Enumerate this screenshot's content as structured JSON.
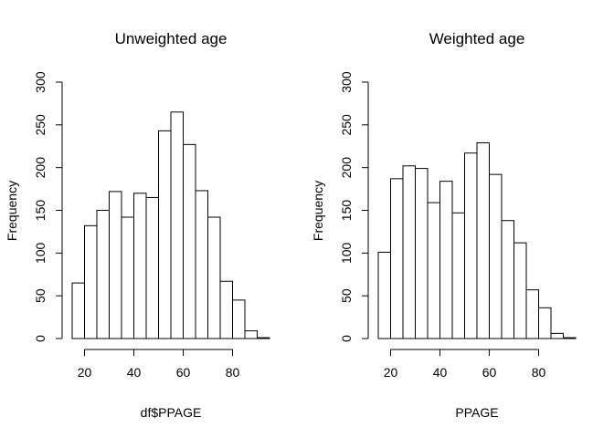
{
  "chart_data": [
    {
      "type": "bar",
      "title": "Unweighted age",
      "xlabel": "df$PPAGE",
      "ylabel": "Frequency",
      "bin_edges": [
        15,
        20,
        25,
        30,
        35,
        40,
        45,
        50,
        55,
        60,
        65,
        70,
        75,
        80,
        85,
        90,
        95
      ],
      "values": [
        65,
        132,
        150,
        172,
        142,
        170,
        165,
        243,
        265,
        227,
        173,
        142,
        67,
        45,
        9,
        1
      ],
      "xticks": [
        20,
        40,
        60,
        80
      ],
      "yticks": [
        0,
        50,
        100,
        150,
        200,
        250,
        300
      ],
      "xlim": [
        15,
        95
      ],
      "ylim": [
        0,
        300
      ],
      "grid": false
    },
    {
      "type": "bar",
      "title": "Weighted age",
      "xlabel": "PPAGE",
      "ylabel": "Frequency",
      "bin_edges": [
        15,
        20,
        25,
        30,
        35,
        40,
        45,
        50,
        55,
        60,
        65,
        70,
        75,
        80,
        85,
        90,
        95
      ],
      "values": [
        101,
        187,
        202,
        199,
        159,
        184,
        147,
        217,
        229,
        192,
        138,
        112,
        57,
        36,
        6,
        1
      ],
      "xticks": [
        20,
        40,
        60,
        80
      ],
      "yticks": [
        0,
        50,
        100,
        150,
        200,
        250,
        300
      ],
      "xlim": [
        15,
        95
      ],
      "ylim": [
        0,
        300
      ],
      "grid": false
    }
  ]
}
